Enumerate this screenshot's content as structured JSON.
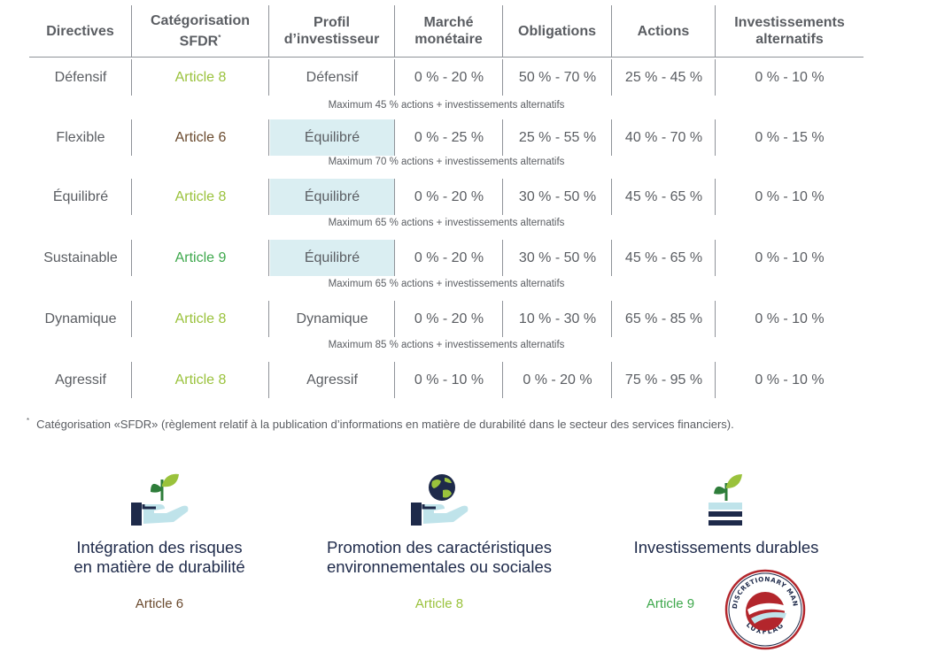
{
  "table": {
    "headers": [
      "Directives",
      "Catégorisation SFDR",
      "Profil\nd'investisseur",
      "Marché\nmonétaire",
      "Obligations",
      "Actions",
      "Investissements\nalternatifs"
    ],
    "sfdr_header": {
      "line1": "Catégorisation",
      "line2": "SFDR",
      "asterisk": "*"
    },
    "rows": [
      {
        "directive": "Défensif",
        "sfdr": "Article 8",
        "sfdr_class": "art8",
        "profile": "Défensif",
        "profile_hl": false,
        "money": "0 % - 20 %",
        "bonds": "50 % - 70 %",
        "equities": "25 % - 45 %",
        "alt": "0 % - 10 %",
        "note": "Maximum 45 % actions + investissements alternatifs"
      },
      {
        "directive": "Flexible",
        "sfdr": "Article 6",
        "sfdr_class": "art6",
        "profile": "Équilibré",
        "profile_hl": true,
        "money": "0 % - 25 %",
        "bonds": "25 % - 55 %",
        "equities": "40 % - 70 %",
        "alt": "0 % - 15 %",
        "note": "Maximum 70 % actions + investissements alternatifs"
      },
      {
        "directive": "Équilibré",
        "sfdr": "Article 8",
        "sfdr_class": "art8",
        "profile": "Équilibré",
        "profile_hl": true,
        "money": "0 % - 20 %",
        "bonds": "30 % - 50 %",
        "equities": "45 % - 65 %",
        "alt": "0 % - 10 %",
        "note": "Maximum 65 % actions + investissements alternatifs"
      },
      {
        "directive": "Sustainable",
        "sfdr": "Article 9",
        "sfdr_class": "art9",
        "profile": "Équilibré",
        "profile_hl": true,
        "money": "0 % - 20 %",
        "bonds": "30 % - 50 %",
        "equities": "45 % - 65 %",
        "alt": "0 % - 10 %",
        "note": "Maximum 65 % actions + investissements alternatifs"
      },
      {
        "directive": "Dynamique",
        "sfdr": "Article 8",
        "sfdr_class": "art8",
        "profile": "Dynamique",
        "profile_hl": false,
        "money": "0 % - 20 %",
        "bonds": "10 % - 30 %",
        "equities": "65 % - 85 %",
        "alt": "0 % - 10 %",
        "note": "Maximum 85 % actions + investissements alternatifs"
      },
      {
        "directive": "Agressif",
        "sfdr": "Article 8",
        "sfdr_class": "art8",
        "profile": "Agressif",
        "profile_hl": false,
        "money": "0 % - 10 %",
        "bonds": "0 % - 20 %",
        "equities": "75 % - 95 %",
        "alt": "0 % - 10 %",
        "note": ""
      }
    ]
  },
  "footnote": {
    "mark": "*",
    "text": "Catégorisation «SFDR» (règlement relatif à la publication d'informations en matière de durabilité dans le secteur des services financiers)."
  },
  "cards": [
    {
      "title": "Intégration des risques\nen matière de durabilité",
      "article": "Article 6",
      "icon": "hand-plant-icon"
    },
    {
      "title": "Promotion des caractéristiques\nenvironnementales ou sociales",
      "article": "Article 8",
      "icon": "hand-globe-icon"
    },
    {
      "title": "Investissements durables",
      "article": "Article 9",
      "icon": "plant-equals-icon"
    }
  ],
  "seal": {
    "top_text": "ESG DISCRETIONARY MANDATE",
    "bottom_text": "LUXFLAG"
  },
  "colors": {
    "article6": "#6a4a2e",
    "article8": "#9ac23c",
    "article9": "#3ea84c",
    "navy": "#1e2a4a",
    "highlight": "#daeef2"
  }
}
